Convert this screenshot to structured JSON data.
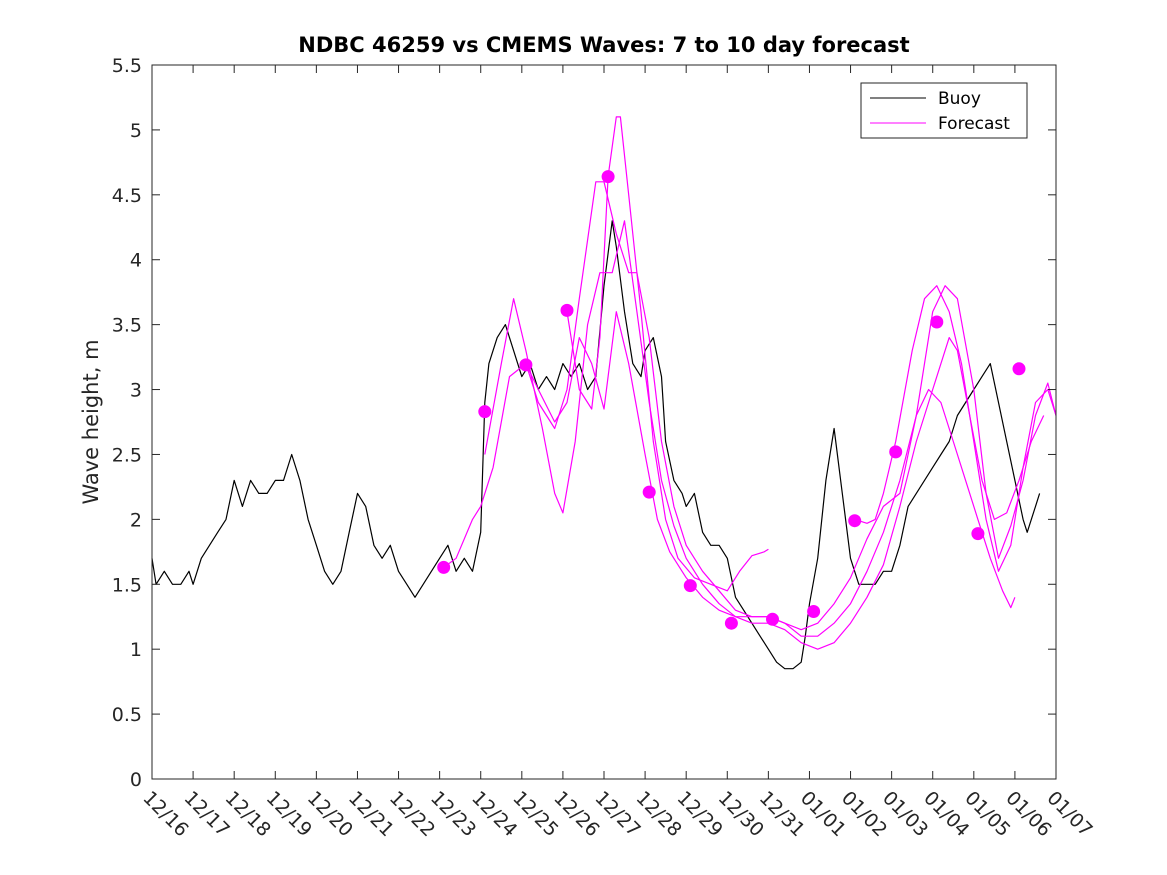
{
  "chart_data": {
    "type": "line",
    "title": "NDBC 46259 vs CMEMS Waves: 7 to 10 day forecast",
    "xlabel": "",
    "ylabel": "Wave height, m",
    "ylim": [
      0,
      5.5
    ],
    "xlim": [
      0,
      22
    ],
    "yticks": [
      "0",
      "0.5",
      "1",
      "1.5",
      "2",
      "2.5",
      "3",
      "3.5",
      "4",
      "4.5",
      "5",
      "5.5"
    ],
    "xticks": [
      "12/16",
      "12/17",
      "12/18",
      "12/19",
      "12/20",
      "12/21",
      "12/22",
      "12/23",
      "12/24",
      "12/25",
      "12/26",
      "12/27",
      "12/28",
      "12/29",
      "12/30",
      "12/31",
      "01/01",
      "01/02",
      "01/03",
      "01/04",
      "01/05",
      "01/06",
      "01/07"
    ],
    "legend": {
      "position": "top-right",
      "entries": [
        {
          "label": "Buoy",
          "color": "#000000"
        },
        {
          "label": "Forecast",
          "color": "#ff00ff"
        }
      ]
    },
    "series": [
      {
        "name": "Buoy",
        "color": "#000000",
        "points": [
          [
            0,
            1.7
          ],
          [
            0.1,
            1.5
          ],
          [
            0.3,
            1.6
          ],
          [
            0.5,
            1.5
          ],
          [
            0.7,
            1.5
          ],
          [
            0.9,
            1.6
          ],
          [
            1.0,
            1.5
          ],
          [
            1.2,
            1.7
          ],
          [
            1.4,
            1.8
          ],
          [
            1.6,
            1.9
          ],
          [
            1.8,
            2.0
          ],
          [
            2.0,
            2.3
          ],
          [
            2.2,
            2.1
          ],
          [
            2.4,
            2.3
          ],
          [
            2.6,
            2.2
          ],
          [
            2.8,
            2.2
          ],
          [
            3.0,
            2.3
          ],
          [
            3.2,
            2.3
          ],
          [
            3.4,
            2.5
          ],
          [
            3.6,
            2.3
          ],
          [
            3.8,
            2.0
          ],
          [
            4.0,
            1.8
          ],
          [
            4.2,
            1.6
          ],
          [
            4.4,
            1.5
          ],
          [
            4.6,
            1.6
          ],
          [
            4.8,
            1.9
          ],
          [
            5.0,
            2.2
          ],
          [
            5.2,
            2.1
          ],
          [
            5.4,
            1.8
          ],
          [
            5.6,
            1.7
          ],
          [
            5.8,
            1.8
          ],
          [
            6.0,
            1.6
          ],
          [
            6.2,
            1.5
          ],
          [
            6.4,
            1.4
          ],
          [
            6.6,
            1.5
          ],
          [
            6.8,
            1.6
          ],
          [
            7.0,
            1.7
          ],
          [
            7.2,
            1.8
          ],
          [
            7.4,
            1.6
          ],
          [
            7.6,
            1.7
          ],
          [
            7.8,
            1.6
          ],
          [
            8.0,
            1.9
          ],
          [
            8.1,
            2.9
          ],
          [
            8.2,
            3.2
          ],
          [
            8.4,
            3.4
          ],
          [
            8.6,
            3.5
          ],
          [
            8.8,
            3.3
          ],
          [
            9.0,
            3.1
          ],
          [
            9.2,
            3.2
          ],
          [
            9.4,
            3.0
          ],
          [
            9.6,
            3.1
          ],
          [
            9.8,
            3.0
          ],
          [
            10.0,
            3.2
          ],
          [
            10.2,
            3.1
          ],
          [
            10.4,
            3.2
          ],
          [
            10.6,
            3.0
          ],
          [
            10.8,
            3.1
          ],
          [
            11.0,
            3.8
          ],
          [
            11.2,
            4.3
          ],
          [
            11.3,
            4.1
          ],
          [
            11.5,
            3.6
          ],
          [
            11.7,
            3.2
          ],
          [
            11.9,
            3.1
          ],
          [
            12.0,
            3.3
          ],
          [
            12.2,
            3.4
          ],
          [
            12.4,
            3.1
          ],
          [
            12.5,
            2.6
          ],
          [
            12.7,
            2.3
          ],
          [
            12.9,
            2.2
          ],
          [
            13.0,
            2.1
          ],
          [
            13.2,
            2.2
          ],
          [
            13.4,
            1.9
          ],
          [
            13.6,
            1.8
          ],
          [
            13.8,
            1.8
          ],
          [
            14.0,
            1.7
          ],
          [
            14.2,
            1.4
          ],
          [
            14.4,
            1.3
          ],
          [
            14.6,
            1.2
          ],
          [
            14.8,
            1.1
          ],
          [
            15.0,
            1.0
          ],
          [
            15.2,
            0.9
          ],
          [
            15.4,
            0.85
          ],
          [
            15.6,
            0.85
          ],
          [
            15.8,
            0.9
          ],
          [
            15.9,
            1.1
          ],
          [
            16.0,
            1.35
          ],
          [
            16.2,
            1.7
          ],
          [
            16.4,
            2.3
          ],
          [
            16.6,
            2.7
          ],
          [
            16.8,
            2.2
          ],
          [
            17.0,
            1.7
          ],
          [
            17.2,
            1.5
          ],
          [
            17.4,
            1.5
          ],
          [
            17.6,
            1.5
          ],
          [
            17.8,
            1.6
          ],
          [
            18.0,
            1.6
          ],
          [
            18.2,
            1.8
          ],
          [
            18.4,
            2.1
          ],
          [
            18.6,
            2.2
          ],
          [
            18.8,
            2.3
          ],
          [
            19.0,
            2.4
          ],
          [
            19.2,
            2.5
          ],
          [
            19.4,
            2.6
          ],
          [
            19.6,
            2.8
          ],
          [
            19.8,
            2.9
          ],
          [
            20.0,
            3.0
          ],
          [
            20.2,
            3.1
          ],
          [
            20.4,
            3.2
          ],
          [
            20.6,
            2.9
          ],
          [
            20.8,
            2.6
          ],
          [
            21.0,
            2.3
          ],
          [
            21.2,
            2.0
          ],
          [
            21.3,
            1.9
          ],
          [
            21.5,
            2.1
          ],
          [
            21.6,
            2.2
          ]
        ]
      },
      {
        "name": "Forecast run 1",
        "color": "#ff00ff",
        "points": [
          [
            7.1,
            1.63
          ],
          [
            7.4,
            1.7
          ],
          [
            7.8,
            2.0
          ],
          [
            8.0,
            2.1
          ],
          [
            8.3,
            2.4
          ],
          [
            8.7,
            3.1
          ],
          [
            9.1,
            3.2
          ],
          [
            9.4,
            3.0
          ],
          [
            9.8,
            2.75
          ],
          [
            10.1,
            2.9
          ],
          [
            10.4,
            3.4
          ],
          [
            10.7,
            3.2
          ],
          [
            11.0,
            2.85
          ],
          [
            11.3,
            3.6
          ],
          [
            11.6,
            3.2
          ],
          [
            12.0,
            2.5
          ],
          [
            12.3,
            2.0
          ],
          [
            12.6,
            1.75
          ],
          [
            13.0,
            1.55
          ],
          [
            13.4,
            1.4
          ],
          [
            13.8,
            1.3
          ],
          [
            14.2,
            1.25
          ],
          [
            14.6,
            1.25
          ],
          [
            15.0,
            1.25
          ],
          [
            15.4,
            1.2
          ],
          [
            15.8,
            1.1
          ],
          [
            16.2,
            1.1
          ],
          [
            16.6,
            1.2
          ],
          [
            17.0,
            1.35
          ],
          [
            17.4,
            1.6
          ],
          [
            17.8,
            1.9
          ],
          [
            18.2,
            2.3
          ],
          [
            18.6,
            2.8
          ],
          [
            18.9,
            3.0
          ],
          [
            19.2,
            2.9
          ],
          [
            19.5,
            2.6
          ],
          [
            19.8,
            2.3
          ],
          [
            20.1,
            2.0
          ],
          [
            20.4,
            1.7
          ],
          [
            20.7,
            1.45
          ],
          [
            20.9,
            1.32
          ],
          [
            21.0,
            1.4
          ]
        ]
      },
      {
        "name": "Forecast run 2",
        "color": "#ff00ff",
        "points": [
          [
            8.1,
            2.5
          ],
          [
            8.5,
            3.2
          ],
          [
            8.8,
            3.7
          ],
          [
            9.1,
            3.3
          ],
          [
            9.5,
            2.7
          ],
          [
            9.8,
            2.2
          ],
          [
            10.0,
            2.05
          ],
          [
            10.3,
            2.6
          ],
          [
            10.6,
            3.5
          ],
          [
            10.9,
            3.9
          ],
          [
            11.2,
            3.9
          ],
          [
            11.5,
            4.3
          ],
          [
            11.8,
            3.6
          ],
          [
            12.1,
            2.9
          ],
          [
            12.4,
            2.3
          ],
          [
            12.7,
            1.95
          ],
          [
            13.0,
            1.7
          ],
          [
            13.4,
            1.5
          ],
          [
            13.8,
            1.35
          ],
          [
            14.2,
            1.25
          ],
          [
            14.6,
            1.2
          ],
          [
            15.0,
            1.2
          ],
          [
            15.4,
            1.15
          ],
          [
            15.8,
            1.05
          ],
          [
            16.2,
            1.0
          ],
          [
            16.6,
            1.05
          ],
          [
            17.0,
            1.2
          ],
          [
            17.4,
            1.4
          ],
          [
            17.8,
            1.65
          ],
          [
            18.2,
            2.1
          ],
          [
            18.6,
            2.6
          ],
          [
            19.0,
            3.0
          ],
          [
            19.4,
            3.4
          ],
          [
            19.6,
            3.3
          ],
          [
            19.9,
            2.8
          ],
          [
            20.2,
            2.3
          ],
          [
            20.5,
            2.0
          ],
          [
            20.8,
            2.05
          ],
          [
            21.1,
            2.3
          ],
          [
            21.4,
            2.6
          ],
          [
            21.7,
            2.8
          ]
        ]
      },
      {
        "name": "Forecast run 3",
        "color": "#ff00ff",
        "points": [
          [
            9.1,
            3.2
          ],
          [
            9.4,
            2.9
          ],
          [
            9.8,
            2.7
          ],
          [
            10.1,
            3.0
          ],
          [
            10.4,
            3.7
          ],
          [
            10.8,
            4.6
          ],
          [
            11.0,
            4.6
          ],
          [
            11.3,
            4.2
          ],
          [
            11.6,
            3.9
          ],
          [
            11.8,
            3.9
          ],
          [
            12.1,
            3.4
          ],
          [
            12.4,
            2.6
          ],
          [
            12.7,
            2.1
          ],
          [
            13.0,
            1.8
          ],
          [
            13.4,
            1.6
          ],
          [
            13.8,
            1.45
          ],
          [
            14.2,
            1.3
          ],
          [
            14.6,
            1.25
          ],
          [
            15.0,
            1.25
          ],
          [
            15.4,
            1.2
          ],
          [
            15.8,
            1.15
          ],
          [
            16.2,
            1.2
          ],
          [
            16.6,
            1.35
          ],
          [
            17.0,
            1.55
          ],
          [
            17.4,
            1.85
          ],
          [
            17.8,
            2.1
          ],
          [
            18.2,
            2.2
          ],
          [
            18.6,
            2.8
          ],
          [
            19.0,
            3.6
          ],
          [
            19.3,
            3.8
          ],
          [
            19.6,
            3.7
          ],
          [
            20.0,
            3.0
          ],
          [
            20.3,
            2.2
          ],
          [
            20.6,
            1.7
          ],
          [
            20.9,
            1.95
          ],
          [
            21.2,
            2.3
          ],
          [
            21.5,
            2.8
          ],
          [
            21.8,
            3.05
          ],
          [
            22.0,
            2.8
          ]
        ]
      },
      {
        "name": "Forecast run 4",
        "color": "#ff00ff",
        "points": [
          [
            10.1,
            3.6
          ],
          [
            10.4,
            3.0
          ],
          [
            10.7,
            2.85
          ],
          [
            10.9,
            3.4
          ],
          [
            11.1,
            4.64
          ],
          [
            11.3,
            5.1
          ],
          [
            11.4,
            5.1
          ],
          [
            11.6,
            4.5
          ],
          [
            11.9,
            3.6
          ],
          [
            12.2,
            2.6
          ],
          [
            12.5,
            2.0
          ],
          [
            12.8,
            1.7
          ],
          [
            13.2,
            1.55
          ],
          [
            13.6,
            1.5
          ],
          [
            14.0,
            1.45
          ],
          [
            14.3,
            1.6
          ],
          [
            14.6,
            1.72
          ],
          [
            14.9,
            1.75
          ],
          [
            15.0,
            1.77
          ]
        ]
      },
      {
        "name": "Forecast run 5",
        "color": "#ff00ff",
        "points": [
          [
            17.1,
            2.0
          ],
          [
            17.4,
            1.97
          ],
          [
            17.6,
            2.0
          ],
          [
            17.8,
            2.2
          ],
          [
            18.1,
            2.6
          ],
          [
            18.5,
            3.3
          ],
          [
            18.8,
            3.7
          ],
          [
            19.1,
            3.8
          ],
          [
            19.4,
            3.6
          ],
          [
            19.7,
            3.2
          ],
          [
            20.0,
            2.6
          ],
          [
            20.3,
            2.0
          ],
          [
            20.6,
            1.6
          ],
          [
            20.9,
            1.8
          ],
          [
            21.2,
            2.4
          ],
          [
            21.5,
            2.9
          ],
          [
            21.8,
            3.0
          ],
          [
            22.0,
            2.8
          ]
        ]
      }
    ],
    "markers": {
      "name": "Forecast initialization points",
      "color": "#ff00ff",
      "points": [
        [
          7.1,
          1.63
        ],
        [
          8.1,
          2.83
        ],
        [
          9.1,
          3.19
        ],
        [
          10.1,
          3.61
        ],
        [
          11.1,
          4.64
        ],
        [
          12.1,
          2.21
        ],
        [
          13.1,
          1.49
        ],
        [
          14.1,
          1.2
        ],
        [
          15.1,
          1.23
        ],
        [
          16.1,
          1.29
        ],
        [
          17.1,
          1.99
        ],
        [
          18.1,
          2.52
        ],
        [
          19.1,
          3.52
        ],
        [
          20.1,
          1.89
        ],
        [
          21.1,
          3.16
        ]
      ]
    }
  }
}
